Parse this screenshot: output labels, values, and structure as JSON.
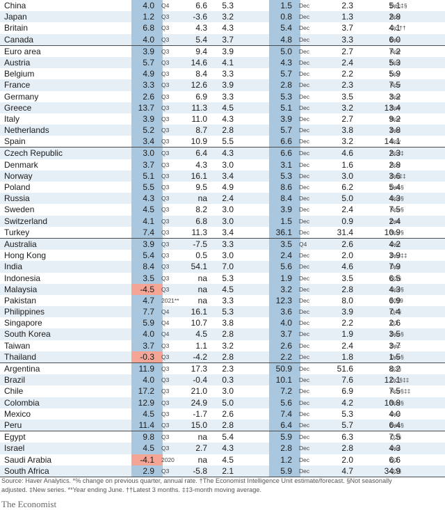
{
  "rows": [
    {
      "country": "China",
      "gdp": "4.0",
      "gdp_q": "Q4",
      "c3": "6.6",
      "c4": "5.3",
      "ip": "1.5",
      "ip_q": "Dec",
      "c7": "2.3",
      "c8": "5.1",
      "q3": "Dec‡§",
      "neg": false
    },
    {
      "country": "Japan",
      "gdp": "1.2",
      "gdp_q": "Q3",
      "c3": "-3.6",
      "c4": "3.2",
      "ip": "0.8",
      "ip_q": "Dec",
      "c7": "1.3",
      "c8": "2.8",
      "q3": "Nov",
      "neg": false
    },
    {
      "country": "Britain",
      "gdp": "6.8",
      "gdp_q": "Q3",
      "c3": "4.3",
      "c4": "4.3",
      "ip": "5.4",
      "ip_q": "Dec",
      "c7": "3.7",
      "c8": "4.1",
      "q3": "Oct††",
      "neg": false
    },
    {
      "country": "Canada",
      "gdp": "4.0",
      "gdp_q": "Q3",
      "c3": "5.4",
      "c4": "3.7",
      "ip": "4.8",
      "ip_q": "Dec",
      "c7": "3.3",
      "c8": "6.0",
      "q3": "Dec",
      "neg": false
    },
    {
      "country": "Euro area",
      "gdp": "3.9",
      "gdp_q": "Q3",
      "c3": "9.4",
      "c4": "3.9",
      "ip": "5.0",
      "ip_q": "Dec",
      "c7": "2.7",
      "c8": "7.2",
      "q3": "Nov",
      "neg": false,
      "group": true
    },
    {
      "country": "Austria",
      "gdp": "5.7",
      "gdp_q": "Q3",
      "c3": "14.6",
      "c4": "4.1",
      "ip": "4.3",
      "ip_q": "Dec",
      "c7": "2.4",
      "c8": "5.3",
      "q3": "Nov",
      "neg": false
    },
    {
      "country": "Belgium",
      "gdp": "4.9",
      "gdp_q": "Q3",
      "c3": "8.4",
      "c4": "3.3",
      "ip": "5.7",
      "ip_q": "Dec",
      "c7": "2.2",
      "c8": "5.9",
      "q3": "Nov",
      "neg": false
    },
    {
      "country": "France",
      "gdp": "3.3",
      "gdp_q": "Q3",
      "c3": "12.6",
      "c4": "3.9",
      "ip": "2.8",
      "ip_q": "Dec",
      "c7": "2.3",
      "c8": "7.5",
      "q3": "Nov",
      "neg": false
    },
    {
      "country": "Germany",
      "gdp": "2.6",
      "gdp_q": "Q3",
      "c3": "6.9",
      "c4": "3.3",
      "ip": "5.3",
      "ip_q": "Dec",
      "c7": "3.5",
      "c8": "3.2",
      "q3": "Nov",
      "neg": false
    },
    {
      "country": "Greece",
      "gdp": "13.7",
      "gdp_q": "Q3",
      "c3": "11.3",
      "c4": "4.5",
      "ip": "5.1",
      "ip_q": "Dec",
      "c7": "3.2",
      "c8": "13.4",
      "q3": "Nov",
      "neg": false
    },
    {
      "country": "Italy",
      "gdp": "3.9",
      "gdp_q": "Q3",
      "c3": "11.0",
      "c4": "4.3",
      "ip": "3.9",
      "ip_q": "Dec",
      "c7": "2.7",
      "c8": "9.2",
      "q3": "Nov",
      "neg": false
    },
    {
      "country": "Netherlands",
      "gdp": "5.2",
      "gdp_q": "Q3",
      "c3": "8.7",
      "c4": "2.8",
      "ip": "5.7",
      "ip_q": "Dec",
      "c7": "3.8",
      "c8": "3.8",
      "q3": "Dec",
      "neg": false
    },
    {
      "country": "Spain",
      "gdp": "3.4",
      "gdp_q": "Q3",
      "c3": "10.9",
      "c4": "5.5",
      "ip": "6.6",
      "ip_q": "Dec",
      "c7": "3.2",
      "c8": "14.1",
      "q3": "Nov",
      "neg": false
    },
    {
      "country": "Czech Republic",
      "gdp": "3.0",
      "gdp_q": "Q3",
      "c3": "6.4",
      "c4": "4.3",
      "ip": "6.6",
      "ip_q": "Dec",
      "c7": "4.6",
      "c8": "2.3",
      "q3": "Nov‡",
      "neg": false,
      "group": true
    },
    {
      "country": "Denmark",
      "gdp": "3.7",
      "gdp_q": "Q3",
      "c3": "4.3",
      "c4": "3.0",
      "ip": "3.1",
      "ip_q": "Dec",
      "c7": "1.6",
      "c8": "2.8",
      "q3": "Nov",
      "neg": false
    },
    {
      "country": "Norway",
      "gdp": "5.1",
      "gdp_q": "Q3",
      "c3": "16.1",
      "c4": "3.4",
      "ip": "5.3",
      "ip_q": "Dec",
      "c7": "3.0",
      "c8": "3.6",
      "q3": "Oct‡‡",
      "neg": false
    },
    {
      "country": "Poland",
      "gdp": "5.5",
      "gdp_q": "Q3",
      "c3": "9.5",
      "c4": "4.9",
      "ip": "8.6",
      "ip_q": "Dec",
      "c7": "6.2",
      "c8": "5.4",
      "q3": "Dec§",
      "neg": false
    },
    {
      "country": "Russia",
      "gdp": "4.3",
      "gdp_q": "Q3",
      "c3": "na",
      "c4": "2.4",
      "ip": "8.4",
      "ip_q": "Dec",
      "c7": "5.0",
      "c8": "4.3",
      "q3": "Nov§",
      "neg": false
    },
    {
      "country": "Sweden",
      "gdp": "4.5",
      "gdp_q": "Q3",
      "c3": "8.2",
      "c4": "3.0",
      "ip": "3.9",
      "ip_q": "Dec",
      "c7": "2.4",
      "c8": "7.5",
      "q3": "Nov§",
      "neg": false
    },
    {
      "country": "Switzerland",
      "gdp": "4.1",
      "gdp_q": "Q3",
      "c3": "6.8",
      "c4": "3.0",
      "ip": "1.5",
      "ip_q": "Dec",
      "c7": "0.9",
      "c8": "2.4",
      "q3": "Dec",
      "neg": false
    },
    {
      "country": "Turkey",
      "gdp": "7.4",
      "gdp_q": "Q3",
      "c3": "11.3",
      "c4": "3.4",
      "ip": "36.1",
      "ip_q": "Dec",
      "c7": "31.4",
      "c8": "10.9",
      "q3": "Nov§",
      "neg": false
    },
    {
      "country": "Australia",
      "gdp": "3.9",
      "gdp_q": "Q3",
      "c3": "-7.5",
      "c4": "3.3",
      "ip": "3.5",
      "ip_q": "Q4",
      "c7": "2.6",
      "c8": "4.2",
      "q3": "Dec",
      "neg": false,
      "group": true
    },
    {
      "country": "Hong Kong",
      "gdp": "5.4",
      "gdp_q": "Q3",
      "c3": "0.5",
      "c4": "3.0",
      "ip": "2.4",
      "ip_q": "Dec",
      "c7": "2.0",
      "c8": "3.9",
      "q3": "Dec‡‡",
      "neg": false
    },
    {
      "country": "India",
      "gdp": "8.4",
      "gdp_q": "Q3",
      "c3": "54.1",
      "c4": "7.0",
      "ip": "5.6",
      "ip_q": "Dec",
      "c7": "4.6",
      "c8": "7.9",
      "q3": "Dec",
      "neg": false
    },
    {
      "country": "Indonesia",
      "gdp": "3.5",
      "gdp_q": "Q3",
      "c3": "na",
      "c4": "5.3",
      "ip": "1.9",
      "ip_q": "Dec",
      "c7": "3.5",
      "c8": "6.5",
      "q3": "Q3§",
      "neg": false
    },
    {
      "country": "Malaysia",
      "gdp": "-4.5",
      "gdp_q": "Q3",
      "c3": "na",
      "c4": "4.5",
      "ip": "3.2",
      "ip_q": "Dec",
      "c7": "2.8",
      "c8": "4.3",
      "q3": "Nov§",
      "neg": true
    },
    {
      "country": "Pakistan",
      "gdp": "4.7",
      "gdp_q": "2021**",
      "c3": "na",
      "c4": "3.3",
      "ip": "12.3",
      "ip_q": "Dec",
      "c7": "8.0",
      "c8": "6.9",
      "q3": "2019",
      "neg": false
    },
    {
      "country": "Philippines",
      "gdp": "7.7",
      "gdp_q": "Q4",
      "c3": "16.1",
      "c4": "5.3",
      "ip": "3.6",
      "ip_q": "Dec",
      "c7": "3.9",
      "c8": "7.4",
      "q3": "Q4§",
      "neg": false
    },
    {
      "country": "Singapore",
      "gdp": "5.9",
      "gdp_q": "Q4",
      "c3": "10.7",
      "c4": "3.8",
      "ip": "4.0",
      "ip_q": "Dec",
      "c7": "2.2",
      "c8": "2.6",
      "q3": "Q3",
      "neg": false
    },
    {
      "country": "South Korea",
      "gdp": "4.0",
      "gdp_q": "Q4",
      "c3": "4.5",
      "c4": "2.8",
      "ip": "3.7",
      "ip_q": "Dec",
      "c7": "1.9",
      "c8": "3.5",
      "q3": "Dec§",
      "neg": false
    },
    {
      "country": "Taiwan",
      "gdp": "3.7",
      "gdp_q": "Q3",
      "c3": "1.1",
      "c4": "3.2",
      "ip": "2.6",
      "ip_q": "Dec",
      "c7": "2.4",
      "c8": "3.7",
      "q3": "Dec",
      "neg": false
    },
    {
      "country": "Thailand",
      "gdp": "-0.3",
      "gdp_q": "Q3",
      "c3": "-4.2",
      "c4": "2.8",
      "ip": "2.2",
      "ip_q": "Dec",
      "c7": "1.8",
      "c8": "1.5",
      "q3": "Dec§",
      "neg": true
    },
    {
      "country": "Argentina",
      "gdp": "11.9",
      "gdp_q": "Q3",
      "c3": "17.3",
      "c4": "2.3",
      "ip": "50.9",
      "ip_q": "Dec",
      "c7": "51.6",
      "c8": "8.2",
      "q3": "Q3§",
      "neg": false,
      "group": true
    },
    {
      "country": "Brazil",
      "gdp": "4.0",
      "gdp_q": "Q3",
      "c3": "-0.4",
      "c4": "0.3",
      "ip": "10.1",
      "ip_q": "Dec",
      "c7": "7.6",
      "c8": "12.1",
      "q3": "Oct§‡‡",
      "neg": false
    },
    {
      "country": "Chile",
      "gdp": "17.2",
      "gdp_q": "Q3",
      "c3": "21.0",
      "c4": "3.0",
      "ip": "7.2",
      "ip_q": "Dec",
      "c7": "6.9",
      "c8": "7.5",
      "q3": "Nov§‡‡",
      "neg": false
    },
    {
      "country": "Colombia",
      "gdp": "12.9",
      "gdp_q": "Q3",
      "c3": "24.9",
      "c4": "5.0",
      "ip": "5.6",
      "ip_q": "Dec",
      "c7": "4.2",
      "c8": "10.8",
      "q3": "Nov§",
      "neg": false
    },
    {
      "country": "Mexico",
      "gdp": "4.5",
      "gdp_q": "Q3",
      "c3": "-1.7",
      "c4": "2.6",
      "ip": "7.4",
      "ip_q": "Dec",
      "c7": "5.3",
      "c8": "4.0",
      "q3": "Dec",
      "neg": false
    },
    {
      "country": "Peru",
      "gdp": "11.4",
      "gdp_q": "Q3",
      "c3": "15.0",
      "c4": "2.8",
      "ip": "6.4",
      "ip_q": "Dec",
      "c7": "5.7",
      "c8": "6.4",
      "q3": "Dec§",
      "neg": false
    },
    {
      "country": "Egypt",
      "gdp": "9.8",
      "gdp_q": "Q3",
      "c3": "na",
      "c4": "5.4",
      "ip": "5.9",
      "ip_q": "Dec",
      "c7": "6.3",
      "c8": "7.5",
      "q3": "Q3§",
      "neg": false,
      "group": true
    },
    {
      "country": "Israel",
      "gdp": "4.5",
      "gdp_q": "Q3",
      "c3": "2.7",
      "c4": "4.3",
      "ip": "2.8",
      "ip_q": "Dec",
      "c7": "2.8",
      "c8": "4.3",
      "q3": "Dec",
      "neg": false
    },
    {
      "country": "Saudi Arabia",
      "gdp": "-4.1",
      "gdp_q": "2020",
      "c3": "na",
      "c4": "4.5",
      "ip": "1.2",
      "ip_q": "Dec",
      "c7": "2.0",
      "c8": "6.6",
      "q3": "Q3",
      "neg": true
    },
    {
      "country": "South Africa",
      "gdp": "2.9",
      "gdp_q": "Q3",
      "c3": "-5.8",
      "c4": "2.1",
      "ip": "5.9",
      "ip_q": "Dec",
      "c7": "4.7",
      "c8": "34.9",
      "q3": "Q3§",
      "neg": false
    }
  ],
  "notes": {
    "line1": "Source: Haver Analytics.  *% change on previous quarter, annual rate. †The Economist Intelligence Unit estimate/forecast. §Not seasonally",
    "line2": "adjusted. ‡New series. **Year ending June. ††Latest 3 months. ‡‡3-month moving average."
  },
  "brand": "The Economist"
}
